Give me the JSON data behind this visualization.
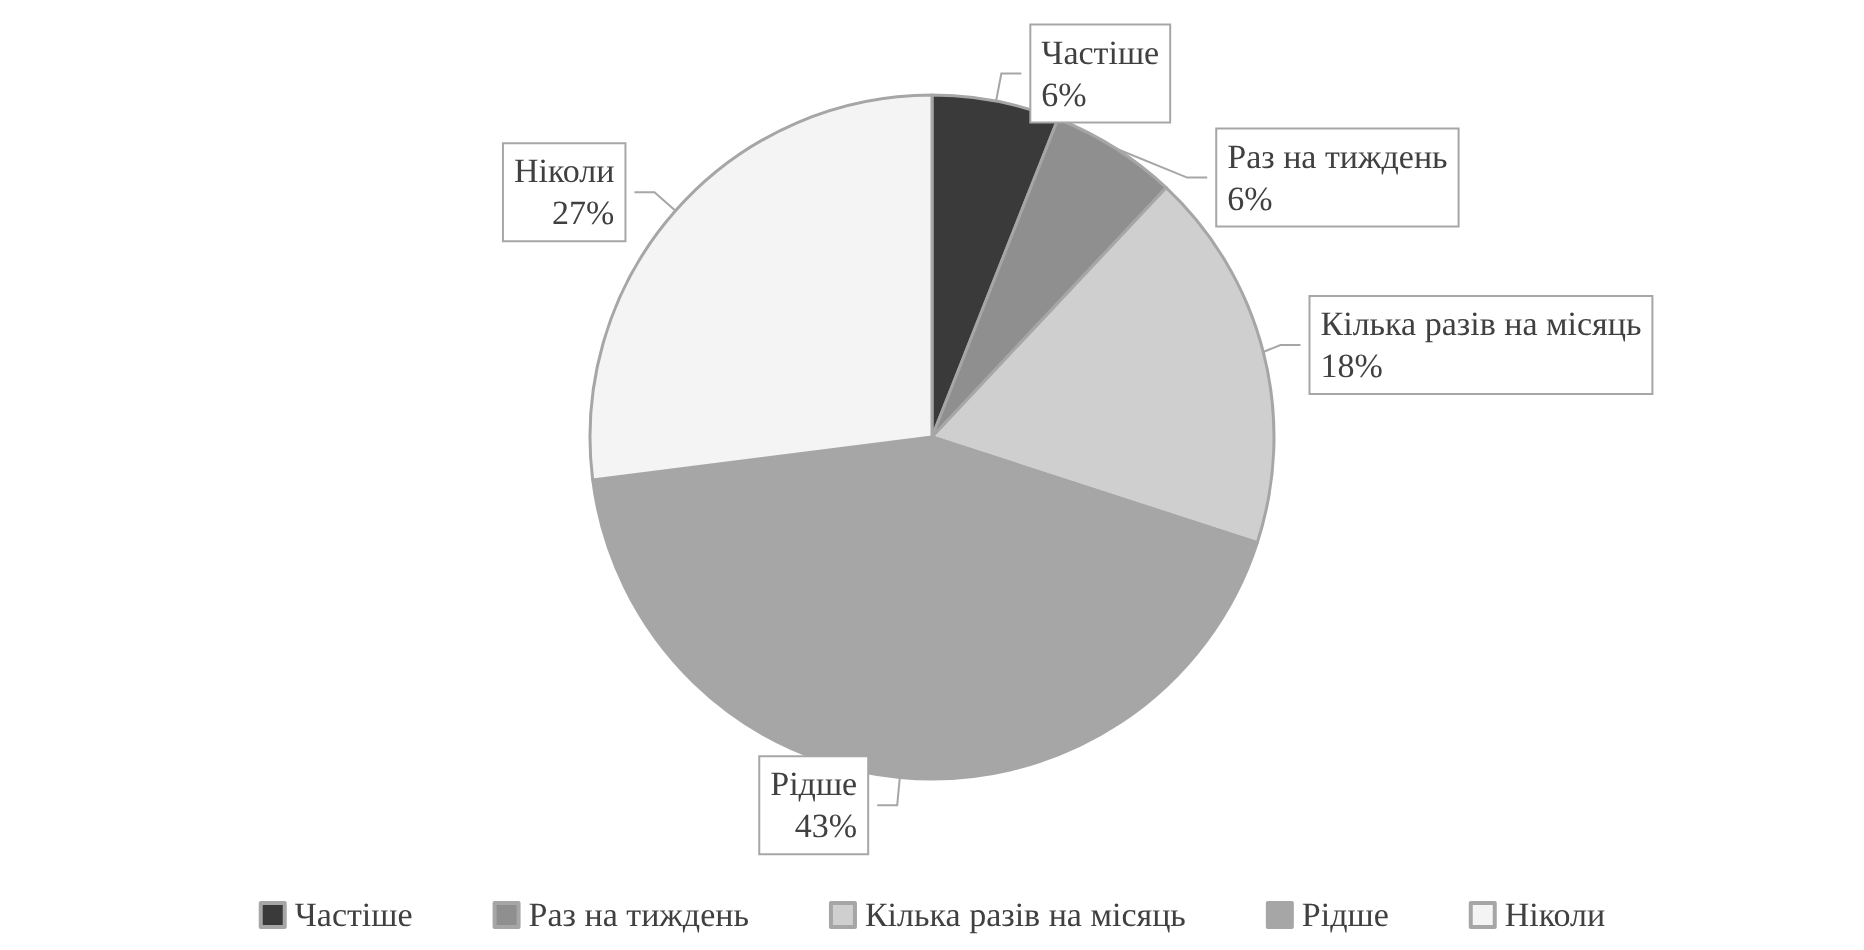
{
  "chart_data": {
    "type": "pie",
    "categories": [
      "Частіше",
      "Раз на тиждень",
      "Кілька разів на місяць",
      "Рідше",
      "Ніколи"
    ],
    "values": [
      6,
      6,
      18,
      43,
      27
    ],
    "value_labels": [
      "6%",
      "6%",
      "18%",
      "43%",
      "27%"
    ],
    "colors": [
      "#3a3a3a",
      "#8f8f8f",
      "#cfcfcf",
      "#a6a6a6",
      "#f4f4f4"
    ],
    "legend": "bottom"
  }
}
